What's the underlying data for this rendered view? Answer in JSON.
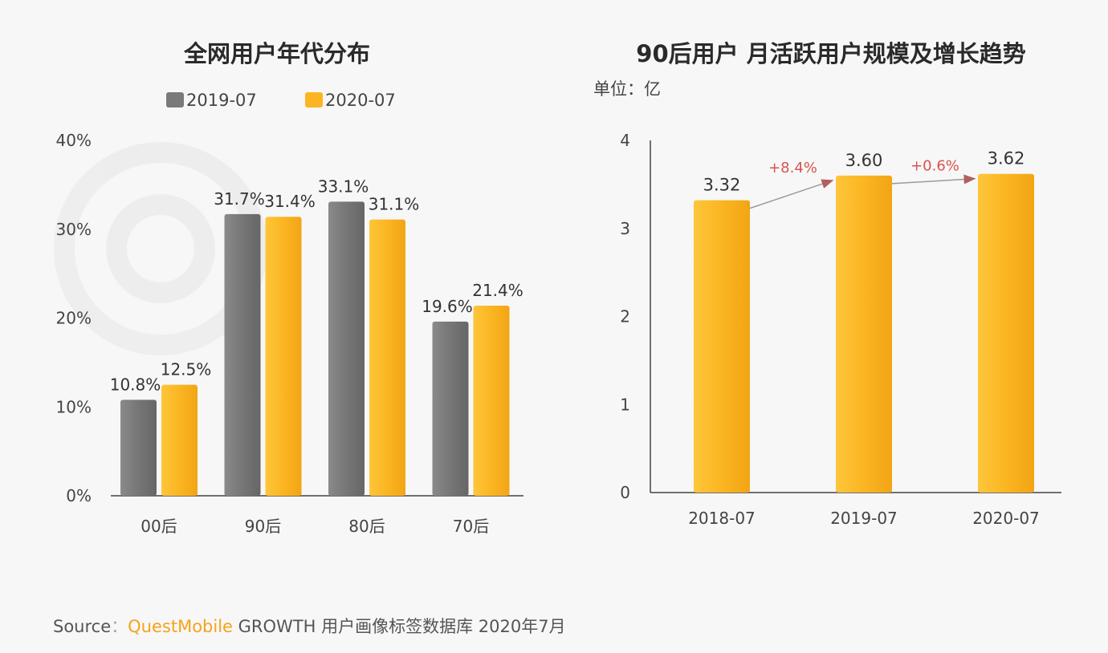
{
  "source": {
    "label": "Source",
    "separator": "：",
    "brand": "QuestMobile",
    "rest": "GROWTH 用户画像标签数据库 2020年7月"
  },
  "chart_data": [
    {
      "type": "bar",
      "title": "全网用户年代分布",
      "categories": [
        "00后",
        "90后",
        "80后",
        "70后"
      ],
      "series": [
        {
          "name": "2019-07",
          "color": "#7a7a7a",
          "values": [
            10.8,
            31.7,
            33.1,
            19.6
          ],
          "labels": [
            "10.8%",
            "31.7%",
            "33.1%",
            "19.6%"
          ]
        },
        {
          "name": "2020-07",
          "color": "#fbb522",
          "values": [
            12.5,
            31.4,
            31.1,
            21.4
          ],
          "labels": [
            "12.5%",
            "31.4%",
            "31.1%",
            "21.4%"
          ]
        }
      ],
      "ylim": [
        0,
        40
      ],
      "yticks": [
        "0%",
        "10%",
        "20%",
        "30%",
        "40%"
      ],
      "legend": "top-left"
    },
    {
      "type": "bar",
      "title": "90后用户 月活跃用户规模及增长趋势",
      "unit_label": "单位：亿",
      "categories": [
        "2018-07",
        "2019-07",
        "2020-07"
      ],
      "series": [
        {
          "color": "#fbb522",
          "values": [
            3.32,
            3.6,
            3.62
          ],
          "labels": [
            "3.32",
            "3.60",
            "3.62"
          ]
        }
      ],
      "growth": [
        "+8.4%",
        "+0.6%"
      ],
      "growth_color": "#d9534f",
      "ylim": [
        0,
        4
      ],
      "yticks": [
        "0",
        "1",
        "2",
        "3",
        "4"
      ]
    }
  ]
}
